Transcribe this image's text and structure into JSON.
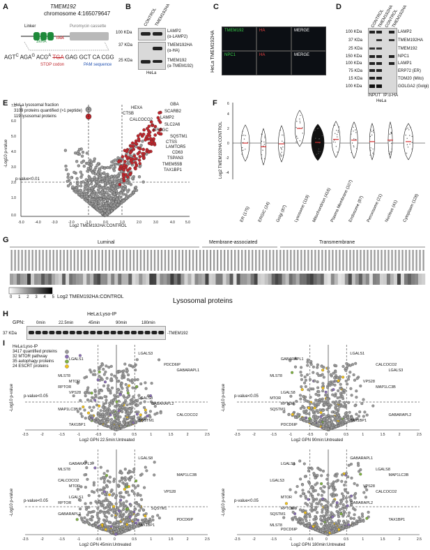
{
  "panelA": {
    "letter": "A",
    "gene": "TMEM192",
    "locus": "chromosome 4:165079647",
    "linker": "Linker",
    "puro": "Puromycin cassette",
    "tag": "3xHA",
    "taa": "TAA",
    "seq_left": "AGT",
    "seq_c": "C",
    "seq_aga": "AGA",
    "seq_g": "G",
    "seq_acg": "ACG",
    "seq_a": "A",
    "seq_stop": "TGA",
    "seq_right": "GAG GCT CA CGG",
    "stop_label": "STOP codon",
    "pam_label": "PAM sequence"
  },
  "panelB": {
    "letter": "B",
    "col1": "CONTROL",
    "col2": "TMEM192HA",
    "mw": [
      "100 KDa",
      "37 KDa",
      "25 KDa"
    ],
    "bands": [
      "LAMP2",
      "(α-LAMP2)",
      "TMEM192HA",
      "(α-HA)",
      "TMEM192",
      "(α-TMEM192)"
    ],
    "cell": "HeLa"
  },
  "panelC": {
    "letter": "C",
    "side": "HeLa TMEM192HA",
    "row1": [
      "TMEM192",
      "HA",
      "MERGE"
    ],
    "row2": [
      "NPC1",
      "HA",
      "MERGE"
    ]
  },
  "panelD": {
    "letter": "D",
    "cols": [
      "CONTROL",
      "TMEM192HA",
      "CONTROL",
      "TMEM192HA"
    ],
    "mw": [
      "100 KDa",
      "37 KDa",
      "25 KDa",
      "150 KDa",
      "100 KDa",
      "75 KDa",
      "15 KDa",
      "100 KDa"
    ],
    "bands": [
      "LAMP2",
      "TMEM192HA",
      "TMEM192",
      "NPC1",
      "LAMP1",
      "ERP72 (ER)",
      "TOM20 (Mito)",
      "GOLGA2 (Golgi)"
    ],
    "footer": [
      "INPUT",
      "IP:α-HA"
    ],
    "cell": "HeLa"
  },
  "panelE": {
    "letter": "E",
    "legend": [
      "HeLa lysosomal fraction",
      "3109 proteins quantified (>1 peptide)",
      "119 lysosomal proteins"
    ],
    "ylabel": "-Log10 p-value",
    "xlabel": "Log2 TMEM192HA:CONTROL",
    "pval": "p-value<0.01",
    "labels": [
      "GBA",
      "HEXA",
      "SCARB2",
      "CTSB",
      "LAMP2",
      "CALCOCO2",
      "SLC2A6",
      "RRAGC",
      "SQSTM1",
      "CTSS",
      "LAMTOR5",
      "CD63",
      "TSPAN3",
      "TMEM55B",
      "TAX1BP1"
    ],
    "colors": {
      "gray": "#9a9a9a",
      "red": "#c0262c"
    }
  },
  "panelF": {
    "letter": "F",
    "ylabel": "Log2 TMEM192HA:CONTROL",
    "categories": [
      "ER (175)",
      "ERGIC (24)",
      "Golgi (87)",
      "Lysosome (119)",
      "Mitochondrion (416)",
      "Plasma Membrane (107)",
      "Endosome (87)",
      "Peroxisome (21)",
      "Nucleus (41)",
      "Cytoplasm (128)"
    ],
    "yticks": [
      "-4",
      "-2",
      "0",
      "2",
      "4",
      "6"
    ]
  },
  "panelG": {
    "letter": "G",
    "groups": [
      "Luminal",
      "Membrane-associated",
      "Transmembrane"
    ],
    "scale_ticks": [
      "0",
      "1",
      "2",
      "3",
      "4",
      "5"
    ],
    "scale_label": "Log2 TMEM192HA:CONTROL",
    "footer": "Lysosomal proteins"
  },
  "panelH": {
    "letter": "H",
    "title": "HeLa:Lyso-IP",
    "gpn": "GPN:",
    "times": [
      "0min",
      "22.5min",
      "45min",
      "90min",
      "180min"
    ],
    "mw": "37 KDa",
    "band": "TMEM192"
  },
  "panelI": {
    "letter": "I",
    "legend": [
      "HeLa:Lyso-IP",
      "3417 quantified proteins",
      "32 MTOR pathway",
      "35 autophagy proteins",
      "24 ESCRT proteins"
    ],
    "legend_colors": [
      "#9a9a9a",
      "#8a6fb5",
      "#7fb241",
      "#f2c21b"
    ],
    "ylabel": "-Log10 p-value",
    "pval": "p-value<0.05",
    "xticks": [
      "-2.5",
      "-2",
      "-1.5",
      "-1",
      "-0.5",
      "0",
      "0.5",
      "1",
      "1.5",
      "2",
      "2.5"
    ],
    "plots": [
      {
        "xlabel": "Log2 GPN 22.5min:Untreated",
        "labels": [
          "LGALS3",
          "LGALS1",
          "PDCD6IP",
          "GABARAPL1",
          "MLST8",
          "MTOR",
          "RPTOR",
          "VPS28",
          "LGALS8",
          "GABARAPL2",
          "MAP1LC3B",
          "CALCOCO2",
          "SQSTM1",
          "TAX1BP1"
        ]
      },
      {
        "xlabel": "Log2 GPN 90min:Untreated",
        "labels": [
          "LGALS1",
          "GABARAPL1",
          "CALCOCO2",
          "LGALS3",
          "MLST8",
          "VPS28",
          "MAP1LC3B",
          "LGALS8",
          "MTOR",
          "RPTOR",
          "SQSTM1",
          "GABARAPL2",
          "TAX1BP1",
          "PDCD6IP"
        ]
      },
      {
        "xlabel": "Log2 GPN 45min:Untreated",
        "labels": [
          "LGALS8",
          "GABARAPL1",
          "MLST8",
          "MAP1LC3B",
          "CALCOCO2",
          "MTOR",
          "VPS28",
          "LGALS1",
          "RPTOR",
          "SQSTM1",
          "GABARAPL2",
          "PDCD6IP",
          "TAX1BP1"
        ]
      },
      {
        "xlabel": "Log2 GPN 180min:Untreated",
        "labels": [
          "GABARAPL1",
          "LGALS1",
          "LGALS8",
          "MAP1LC3B",
          "LGALS3",
          "VPS28",
          "CALCOCO2",
          "MTOR",
          "GABARAPL2",
          "RPTOR",
          "SQSTM1",
          "TAX1BP1",
          "MLST8",
          "PDCD6IP"
        ]
      }
    ]
  }
}
